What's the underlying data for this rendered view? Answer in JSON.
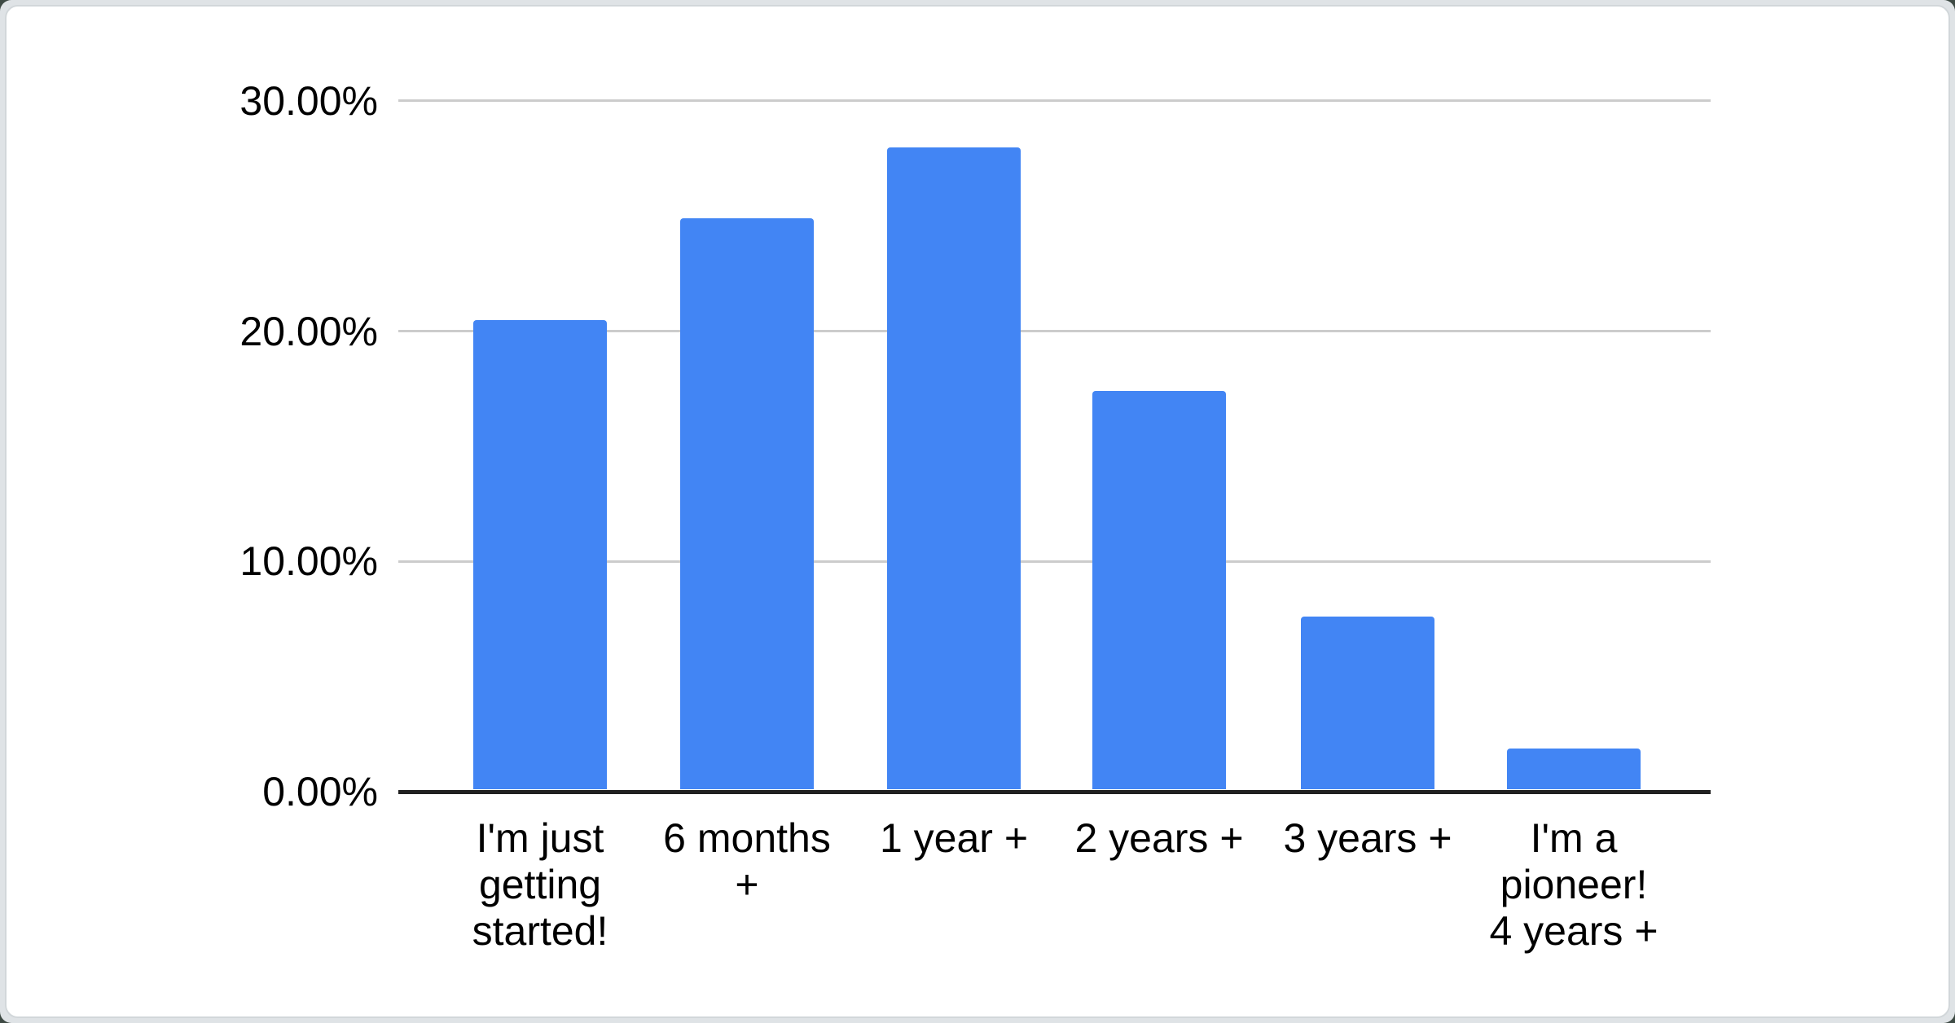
{
  "chart_data": {
    "type": "bar",
    "title": "",
    "xlabel": "",
    "ylabel": "",
    "categories": [
      "I'm just getting started!",
      "6 months +",
      "1 year +",
      "2 years +",
      "3 years +",
      "I'm a pioneer! 4 years +"
    ],
    "tick_display": [
      "I'm just\ngetting\nstarted!",
      "6 months\n+",
      "1 year +",
      "2 years +",
      "3 years +",
      "I'm a\npioneer!\n4 years +"
    ],
    "values": [
      20.4,
      24.8,
      27.9,
      17.3,
      7.5,
      1.8
    ],
    "value_unit": "%",
    "ylim": [
      0,
      30
    ],
    "yticks": [
      {
        "value": 0,
        "label": "0.00%"
      },
      {
        "value": 10,
        "label": "10.00%"
      },
      {
        "value": 20,
        "label": "20.00%"
      },
      {
        "value": 30,
        "label": "30.00%"
      }
    ],
    "grid": true,
    "legend": "none"
  },
  "colors": {
    "bar": "#4285f4",
    "gridline": "#cccccc",
    "axis_line": "#212121",
    "label_text": "#000000",
    "card_bg": "#ffffff",
    "page_bg": "#dfe3e6"
  }
}
